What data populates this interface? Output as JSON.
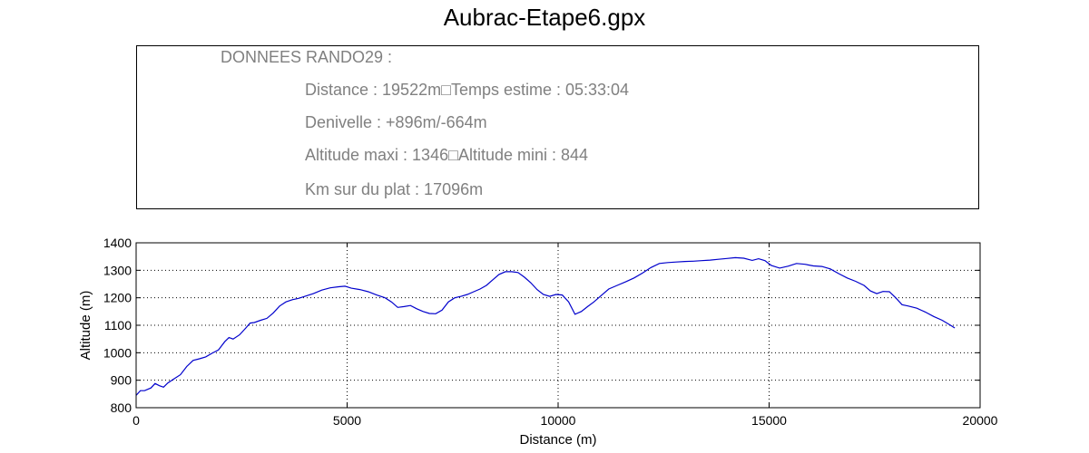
{
  "chart_data": {
    "type": "line",
    "title": "Aubrac-Etape6.gpx",
    "xlabel": "Distance (m)",
    "ylabel": "Altitude (m)",
    "xlim": [
      0,
      20000
    ],
    "ylim": [
      800,
      1400
    ],
    "xticks": [
      0,
      5000,
      10000,
      15000,
      20000
    ],
    "yticks": [
      800,
      900,
      1000,
      1100,
      1200,
      1300,
      1400
    ],
    "grid": true,
    "line_color": "#0000cc",
    "info_box": {
      "heading": "DONNEES RANDO29  :",
      "lines": [
        "Distance : 19522m□Temps estime : 05:33:04",
        "Denivelle : +896m/-664m",
        "Altitude maxi : 1346□Altitude mini : 844",
        "Km sur du plat : 17096m"
      ]
    },
    "series": [
      {
        "x": [
          0,
          100,
          200,
          350,
          450,
          550,
          650,
          750,
          900,
          1050,
          1200,
          1350,
          1500,
          1650,
          1800,
          1950,
          2100,
          2200,
          2300,
          2450,
          2600,
          2700,
          2800,
          2950,
          3100,
          3250,
          3400,
          3550,
          3700,
          3850,
          4000,
          4200,
          4400,
          4600,
          4800,
          4950,
          5100,
          5300,
          5500,
          5700,
          5900,
          6050,
          6200,
          6350,
          6500,
          6650,
          6800,
          6950,
          7100,
          7250,
          7400,
          7550,
          7700,
          7850,
          8000,
          8150,
          8300,
          8450,
          8600,
          8750,
          8900,
          9050,
          9200,
          9350,
          9500,
          9650,
          9800,
          9950,
          10100,
          10250,
          10400,
          10550,
          10700,
          10850,
          11000,
          11200,
          11400,
          11600,
          11800,
          12000,
          12200,
          12400,
          12600,
          12800,
          13000,
          13200,
          13400,
          13600,
          13800,
          14000,
          14200,
          14400,
          14600,
          14750,
          14900,
          15050,
          15250,
          15450,
          15650,
          15850,
          16050,
          16250,
          16450,
          16650,
          16850,
          17050,
          17250,
          17400,
          17550,
          17700,
          17850,
          18000,
          18150,
          18300,
          18500,
          18700,
          18900,
          19100,
          19300,
          19400
        ],
        "y": [
          845,
          862,
          862,
          872,
          888,
          880,
          875,
          890,
          905,
          920,
          950,
          972,
          978,
          985,
          998,
          1010,
          1040,
          1055,
          1050,
          1065,
          1090,
          1108,
          1110,
          1118,
          1125,
          1145,
          1170,
          1185,
          1193,
          1198,
          1205,
          1215,
          1228,
          1236,
          1240,
          1242,
          1235,
          1230,
          1222,
          1210,
          1200,
          1185,
          1165,
          1168,
          1172,
          1160,
          1150,
          1143,
          1142,
          1155,
          1185,
          1200,
          1205,
          1212,
          1222,
          1232,
          1245,
          1265,
          1285,
          1295,
          1295,
          1292,
          1275,
          1255,
          1230,
          1212,
          1205,
          1212,
          1210,
          1185,
          1140,
          1150,
          1168,
          1185,
          1205,
          1232,
          1245,
          1258,
          1272,
          1290,
          1310,
          1325,
          1328,
          1330,
          1332,
          1333,
          1335,
          1337,
          1340,
          1343,
          1346,
          1344,
          1336,
          1342,
          1335,
          1318,
          1308,
          1315,
          1325,
          1322,
          1316,
          1314,
          1305,
          1288,
          1272,
          1260,
          1245,
          1225,
          1215,
          1223,
          1222,
          1200,
          1175,
          1170,
          1162,
          1148,
          1132,
          1118,
          1100,
          1090
        ]
      }
    ]
  }
}
